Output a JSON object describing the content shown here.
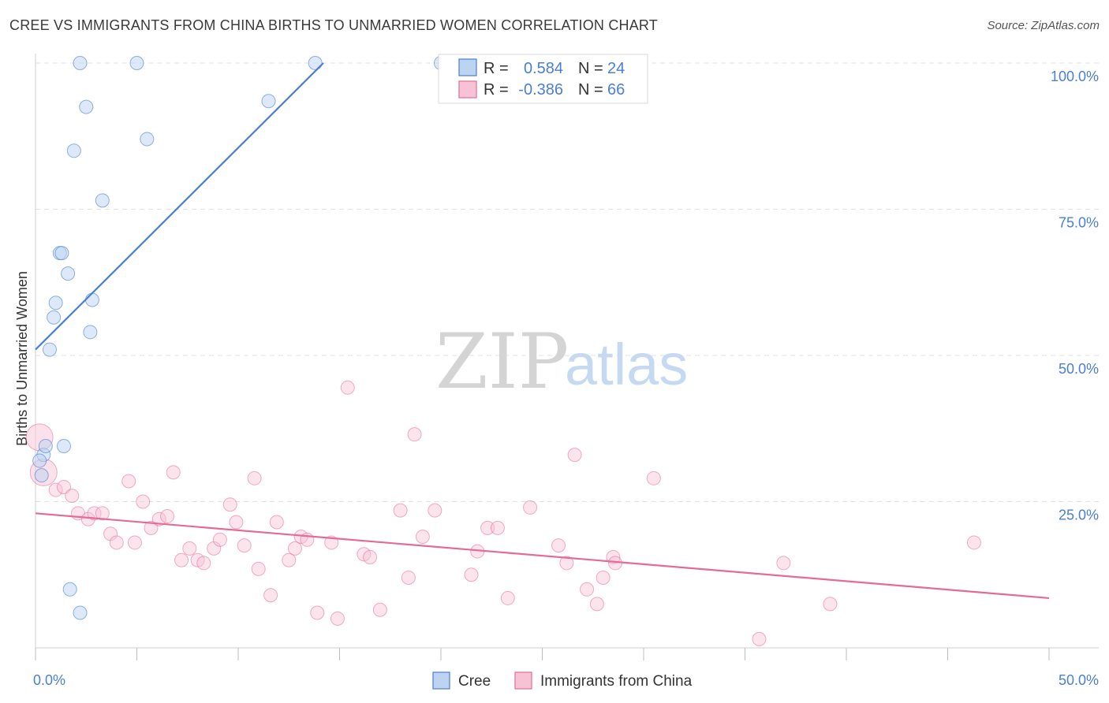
{
  "title": "CREE VS IMMIGRANTS FROM CHINA BIRTHS TO UNMARRIED WOMEN CORRELATION CHART",
  "source": "Source: ZipAtlas.com",
  "watermark": {
    "zip": "ZIP",
    "atlas": "atlas"
  },
  "colors": {
    "cree": "#4a7fd4",
    "cree_fill": "#bcd3f2",
    "china": "#e56b97",
    "china_fill": "#f7c3d4",
    "tick_text": "#4a7fd4",
    "grid": "#e2e2e2"
  },
  "legend": {
    "r_label": "R =",
    "n_label": "N =",
    "cree": {
      "r": "0.584",
      "n": "24"
    },
    "china": {
      "r": "-0.386",
      "n": "66"
    }
  },
  "bottom_legend": {
    "cree": "Cree",
    "china": "Immigrants from China"
  },
  "chart_data": {
    "type": "scatter",
    "title": "CREE VS IMMIGRANTS FROM CHINA BIRTHS TO UNMARRIED WOMEN CORRELATION CHART",
    "xlabel": "",
    "ylabel": "Births to Unmarried Women",
    "xlim": [
      0,
      50
    ],
    "ylim": [
      0,
      100
    ],
    "x_tick_labels": [
      "0.0%",
      "50.0%"
    ],
    "y_ticks": [
      25,
      50,
      75,
      100
    ],
    "y_tick_labels": [
      "25.0%",
      "50.0%",
      "75.0%",
      "100.0%"
    ],
    "grid": true,
    "series": [
      {
        "name": "Cree",
        "r": 0.584,
        "n": 24,
        "trend": {
          "x": [
            0,
            14.2
          ],
          "y": [
            51,
            100
          ]
        },
        "points": [
          {
            "x": 2.2,
            "y": 100
          },
          {
            "x": 5.0,
            "y": 100
          },
          {
            "x": 13.8,
            "y": 100
          },
          {
            "x": 20.0,
            "y": 100
          },
          {
            "x": 11.5,
            "y": 93.5
          },
          {
            "x": 2.5,
            "y": 92.5
          },
          {
            "x": 5.5,
            "y": 87
          },
          {
            "x": 1.9,
            "y": 85
          },
          {
            "x": 3.3,
            "y": 76.5
          },
          {
            "x": 1.2,
            "y": 67.5
          },
          {
            "x": 1.3,
            "y": 67.5
          },
          {
            "x": 1.6,
            "y": 64
          },
          {
            "x": 2.8,
            "y": 59.5
          },
          {
            "x": 1.0,
            "y": 59
          },
          {
            "x": 0.9,
            "y": 56.5
          },
          {
            "x": 2.7,
            "y": 54
          },
          {
            "x": 0.7,
            "y": 51
          },
          {
            "x": 1.4,
            "y": 34.5
          },
          {
            "x": 0.4,
            "y": 33
          },
          {
            "x": 0.5,
            "y": 34.5
          },
          {
            "x": 0.2,
            "y": 32
          },
          {
            "x": 0.3,
            "y": 29.5
          },
          {
            "x": 1.7,
            "y": 10
          },
          {
            "x": 2.2,
            "y": 6
          }
        ]
      },
      {
        "name": "Immigrants from China",
        "r": -0.386,
        "n": 66,
        "trend": {
          "x": [
            0,
            50
          ],
          "y": [
            23,
            8.5
          ]
        },
        "points": [
          {
            "x": 0.2,
            "y": 36,
            "big": true
          },
          {
            "x": 0.4,
            "y": 30,
            "big": true
          },
          {
            "x": 1.0,
            "y": 27
          },
          {
            "x": 1.4,
            "y": 27.5
          },
          {
            "x": 1.8,
            "y": 26
          },
          {
            "x": 2.1,
            "y": 23
          },
          {
            "x": 2.6,
            "y": 22
          },
          {
            "x": 2.9,
            "y": 23
          },
          {
            "x": 3.3,
            "y": 23
          },
          {
            "x": 3.7,
            "y": 19.5
          },
          {
            "x": 4.0,
            "y": 18
          },
          {
            "x": 4.6,
            "y": 28.5
          },
          {
            "x": 4.9,
            "y": 18
          },
          {
            "x": 5.3,
            "y": 25
          },
          {
            "x": 5.7,
            "y": 20.5
          },
          {
            "x": 6.1,
            "y": 22
          },
          {
            "x": 6.5,
            "y": 22.5
          },
          {
            "x": 6.8,
            "y": 30
          },
          {
            "x": 7.2,
            "y": 15
          },
          {
            "x": 7.6,
            "y": 17
          },
          {
            "x": 8.0,
            "y": 15
          },
          {
            "x": 8.3,
            "y": 14.5
          },
          {
            "x": 8.8,
            "y": 17
          },
          {
            "x": 9.1,
            "y": 18.5
          },
          {
            "x": 9.6,
            "y": 24.5
          },
          {
            "x": 9.9,
            "y": 21.5
          },
          {
            "x": 10.3,
            "y": 17.5
          },
          {
            "x": 10.8,
            "y": 29
          },
          {
            "x": 11.0,
            "y": 13.5
          },
          {
            "x": 11.6,
            "y": 9
          },
          {
            "x": 11.9,
            "y": 21.5
          },
          {
            "x": 12.5,
            "y": 15
          },
          {
            "x": 12.8,
            "y": 17
          },
          {
            "x": 13.1,
            "y": 19
          },
          {
            "x": 13.4,
            "y": 18.5
          },
          {
            "x": 13.9,
            "y": 6
          },
          {
            "x": 14.6,
            "y": 18
          },
          {
            "x": 14.9,
            "y": 5
          },
          {
            "x": 15.4,
            "y": 44.5
          },
          {
            "x": 16.2,
            "y": 16
          },
          {
            "x": 16.5,
            "y": 15.5
          },
          {
            "x": 17.0,
            "y": 6.5
          },
          {
            "x": 18.0,
            "y": 23.5
          },
          {
            "x": 18.4,
            "y": 12
          },
          {
            "x": 18.7,
            "y": 36.5
          },
          {
            "x": 19.1,
            "y": 19
          },
          {
            "x": 19.7,
            "y": 23.5
          },
          {
            "x": 21.5,
            "y": 12.5
          },
          {
            "x": 21.8,
            "y": 16.5
          },
          {
            "x": 22.3,
            "y": 20.5
          },
          {
            "x": 22.8,
            "y": 20.5
          },
          {
            "x": 23.3,
            "y": 8.5
          },
          {
            "x": 24.4,
            "y": 24
          },
          {
            "x": 25.8,
            "y": 17.5
          },
          {
            "x": 26.2,
            "y": 14.5
          },
          {
            "x": 26.6,
            "y": 33
          },
          {
            "x": 27.2,
            "y": 10
          },
          {
            "x": 27.7,
            "y": 7.5
          },
          {
            "x": 28.0,
            "y": 12
          },
          {
            "x": 28.5,
            "y": 15.5
          },
          {
            "x": 28.6,
            "y": 14.5
          },
          {
            "x": 30.5,
            "y": 29
          },
          {
            "x": 35.7,
            "y": 1.5
          },
          {
            "x": 36.9,
            "y": 14.5
          },
          {
            "x": 39.2,
            "y": 7.5
          },
          {
            "x": 46.3,
            "y": 18
          }
        ]
      }
    ]
  }
}
